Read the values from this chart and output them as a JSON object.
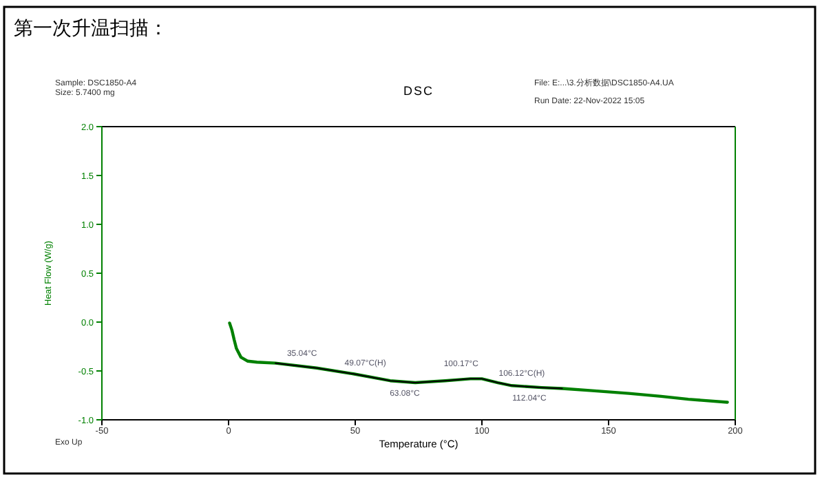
{
  "chart_data": {
    "type": "line",
    "title": "第一次升温扫描：",
    "subtitle": "DSC",
    "xlabel": "Temperature (°C)",
    "ylabel": "Heat Flow (W/g)",
    "xlim": [
      -50,
      200
    ],
    "xticks": [
      -50,
      0,
      50,
      100,
      150,
      200
    ],
    "ylim": [
      -1,
      2
    ],
    "yticks": [
      {
        "value": -1,
        "label": "-1.0"
      },
      {
        "value": -0.5,
        "label": "-0.5"
      },
      {
        "value": 0,
        "label": "0.0"
      },
      {
        "value": 0.5,
        "label": "0.5"
      },
      {
        "value": 1,
        "label": "1.0"
      },
      {
        "value": 1.5,
        "label": "1.5"
      },
      {
        "value": 2,
        "label": "2.0"
      }
    ],
    "series": [
      {
        "color": "#008000",
        "x": [
          0.4,
          1.3,
          2.2,
          3.1,
          4.9,
          7.6,
          11.2,
          18.5,
          34.8,
          49.3,
          63.8,
          73.7,
          85.5,
          95.5,
          100,
          106.3,
          111.8,
          123.6,
          131.7,
          142.6,
          158,
          170.7,
          181.5,
          196.9
        ],
        "values": [
          -0.01,
          -0.08,
          -0.18,
          -0.27,
          -0.36,
          -0.4,
          -0.41,
          -0.42,
          -0.47,
          -0.53,
          -0.6,
          -0.62,
          -0.6,
          -0.58,
          -0.58,
          -0.62,
          -0.65,
          -0.67,
          -0.68,
          -0.7,
          -0.73,
          -0.76,
          -0.79,
          -0.82
        ]
      },
      {
        "color": "#000000",
        "x": [
          18.5,
          34.8,
          49.3,
          63.8,
          73.7,
          85.5,
          95.5,
          100,
          106.3,
          111.8,
          123.6,
          131.7
        ],
        "values": [
          -0.42,
          -0.47,
          -0.53,
          -0.6,
          -0.62,
          -0.6,
          -0.58,
          -0.58,
          -0.62,
          -0.65,
          -0.67,
          -0.68
        ]
      }
    ],
    "annotations": [
      "Sample: DSC1850-A4",
      "Size:  5.7400 mg",
      "File: E:...\\3.分析数据\\DSC1850-A4.UA",
      "Run Date: 22-Nov-2022 15:05",
      "Exo Up",
      {
        "text": "35.04°C",
        "x": 35.04,
        "y": -0.47
      },
      {
        "text": "49.07°C(H)",
        "x": 49.07,
        "y": -0.53
      },
      {
        "text": "63.08°C",
        "x": 63.08,
        "y": -0.6
      },
      {
        "text": "100.17°C",
        "x": 100.17,
        "y": -0.58
      },
      {
        "text": "106.12°C(H)",
        "x": 106.12,
        "y": -0.62
      },
      {
        "text": "112.04°C",
        "x": 112.04,
        "y": -0.65
      }
    ]
  }
}
